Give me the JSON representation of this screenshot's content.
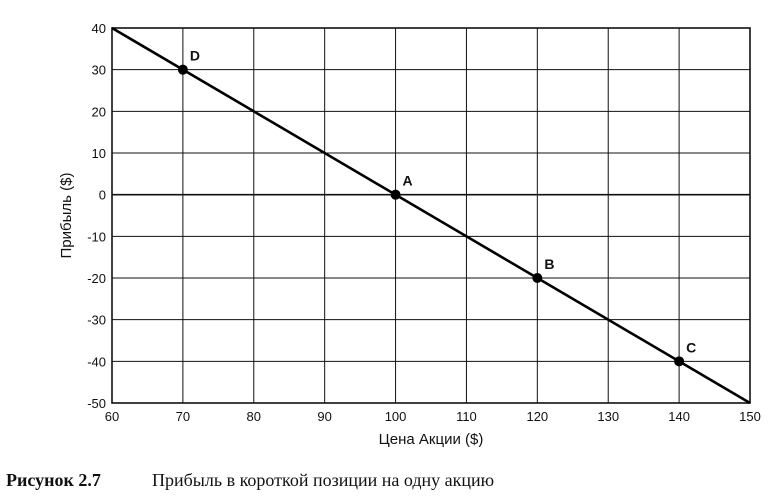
{
  "chart_data": {
    "type": "line",
    "xlabel": "Цена Акции ($)",
    "ylabel": "Прибыль ($)",
    "xlim": [
      60,
      150
    ],
    "ylim": [
      -50,
      40
    ],
    "xticks": [
      "60",
      "70",
      "80",
      "90",
      "100",
      "110",
      "120",
      "130",
      "140",
      "150"
    ],
    "yticks": [
      "40",
      "30",
      "20",
      "10",
      "0",
      "-10",
      "-20",
      "-30",
      "-40",
      "-50"
    ],
    "grid": true,
    "series": [
      {
        "x": [
          60,
          150
        ],
        "y": [
          40,
          -50
        ]
      }
    ],
    "points": [
      {
        "label": "D",
        "x": 70,
        "y": 30
      },
      {
        "label": "A",
        "x": 100,
        "y": 0
      },
      {
        "label": "B",
        "x": 120,
        "y": -20
      },
      {
        "label": "C",
        "x": 140,
        "y": -40
      }
    ]
  },
  "caption": {
    "number": "Рисунок 2.7",
    "text": "Прибыль в короткой позиции на одну акцию"
  }
}
